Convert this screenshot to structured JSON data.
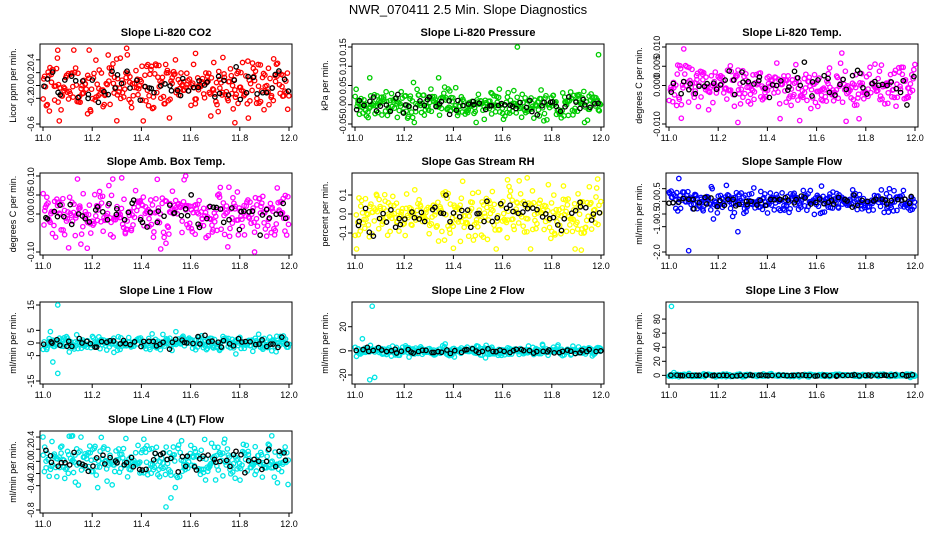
{
  "figure": {
    "title": "NWR_070411  2.5 Min. Slope Diagnostics"
  },
  "chart_data": [
    {
      "type": "scatter",
      "title": "Slope Li-820 CO2",
      "ylabel": "Licor ppm per min.",
      "xlim": [
        11.0,
        12.0
      ],
      "ylim": [
        -0.6,
        0.6
      ],
      "yticks": [
        "-0.6",
        "-0.2",
        "0.0",
        "0.2",
        "0.4"
      ],
      "xticks": [
        "11.0",
        "11.2",
        "11.4",
        "11.6",
        "11.8",
        "12.0"
      ],
      "color": "#ff0000",
      "spread": 0.22,
      "outliers": [
        [
          11.06,
          0.55
        ],
        [
          11.34,
          0.58
        ],
        [
          11.62,
          0.5
        ],
        [
          11.78,
          -0.58
        ],
        [
          11.3,
          -0.55
        ]
      ],
      "seed": 11
    },
    {
      "type": "scatter",
      "title": "Slope Li-820 Pressure",
      "ylabel": "kPa per min.",
      "xlim": [
        11.0,
        12.0
      ],
      "ylim": [
        -0.05,
        0.15
      ],
      "yticks": [
        "-0.05",
        "0.00",
        "0.05",
        "0.10",
        "0.15"
      ],
      "xticks": [
        "11.0",
        "11.2",
        "11.4",
        "11.6",
        "11.8",
        "12.0"
      ],
      "color": "#00cc00",
      "spread": 0.018,
      "outliers": [
        [
          11.66,
          0.15
        ],
        [
          11.99,
          0.13
        ],
        [
          11.34,
          0.07
        ],
        [
          11.06,
          0.07
        ]
      ],
      "seed": 22
    },
    {
      "type": "scatter",
      "title": "Slope Li-820 Temp.",
      "ylabel": "degrees C per min.",
      "xlim": [
        11.0,
        12.0
      ],
      "ylim": [
        -0.01,
        0.01
      ],
      "yticks": [
        "-0.010",
        "0.000",
        "0.005",
        "0.010"
      ],
      "xticks": [
        "11.0",
        "11.2",
        "11.4",
        "11.6",
        "11.8",
        "12.0"
      ],
      "color": "#ff00ff",
      "spread": 0.0028,
      "outliers": [
        [
          11.06,
          0.0095
        ],
        [
          11.28,
          -0.0096
        ],
        [
          11.05,
          -0.0085
        ],
        [
          11.72,
          -0.0093
        ]
      ],
      "seed": 33
    },
    {
      "type": "scatter",
      "title": "Slope Amb. Box Temp.",
      "ylabel": "degrees C per min.",
      "xlim": [
        11.0,
        12.0
      ],
      "ylim": [
        -0.1,
        0.1
      ],
      "yticks": [
        "-0.10",
        "0.00",
        "0.05",
        "0.10"
      ],
      "xticks": [
        "11.0",
        "11.2",
        "11.4",
        "11.6",
        "11.8",
        "12.0"
      ],
      "color": "#ff00ff",
      "spread": 0.035,
      "outliers": [
        [
          11.58,
          0.105
        ],
        [
          11.32,
          0.095
        ],
        [
          11.86,
          -0.1
        ],
        [
          11.18,
          -0.09
        ]
      ],
      "seed": 44
    },
    {
      "type": "scatter",
      "title": "Slope Gas Stream RH",
      "ylabel": "percent per min.",
      "xlim": [
        11.0,
        12.0
      ],
      "ylim": [
        -0.2,
        0.2
      ],
      "yticks": [
        "-0.1",
        "0.0",
        "0.1"
      ],
      "xticks": [
        "11.0",
        "11.2",
        "11.4",
        "11.6",
        "11.8",
        "12.0"
      ],
      "color": "#ffff00",
      "spread": 0.07,
      "outliers": [
        [
          11.62,
          0.18
        ],
        [
          11.7,
          0.19
        ],
        [
          11.92,
          -0.19
        ],
        [
          11.4,
          -0.18
        ]
      ],
      "seed": 55
    },
    {
      "type": "scatter",
      "title": "Slope Sample Flow",
      "ylabel": "ml/min per min.",
      "xlim": [
        11.0,
        12.0
      ],
      "ylim": [
        -2.0,
        1.0
      ],
      "yticks": [
        "-2.0",
        "-1.0",
        "-0.5",
        "0.0",
        "0.5"
      ],
      "xticks": [
        "11.0",
        "11.2",
        "11.4",
        "11.6",
        "11.8",
        "12.0"
      ],
      "color": "#0000ff",
      "spread": 0.22,
      "outliers": [
        [
          11.08,
          -1.95
        ],
        [
          11.04,
          0.9
        ],
        [
          11.28,
          -1.2
        ],
        [
          11.62,
          0.6
        ]
      ],
      "seed": 66
    },
    {
      "type": "scatter",
      "title": "Slope Line 1 Flow",
      "ylabel": "ml/min per min.",
      "xlim": [
        11.0,
        12.0
      ],
      "ylim": [
        -15.0,
        15.0
      ],
      "yticks": [
        "-15",
        "-5",
        "0",
        "5",
        "15"
      ],
      "xticks": [
        "11.0",
        "11.2",
        "11.4",
        "11.6",
        "11.8",
        "12.0"
      ],
      "color": "#00e5e5",
      "spread": 1.6,
      "outliers": [
        [
          11.06,
          15.0
        ],
        [
          11.06,
          -12.0
        ],
        [
          11.04,
          -7.5
        ],
        [
          11.03,
          4.5
        ]
      ],
      "seed": 77
    },
    {
      "type": "scatter",
      "title": "Slope Line 2 Flow",
      "ylabel": "ml/min per min.",
      "xlim": [
        11.0,
        12.0
      ],
      "ylim": [
        -25.0,
        38.0
      ],
      "yticks": [
        "-20",
        "0",
        "20"
      ],
      "xticks": [
        "11.0",
        "11.2",
        "11.4",
        "11.6",
        "11.8",
        "12.0"
      ],
      "color": "#00e5e5",
      "spread": 2.0,
      "outliers": [
        [
          11.07,
          37.0
        ],
        [
          11.06,
          -24.0
        ],
        [
          11.08,
          -22.0
        ],
        [
          11.03,
          10.0
        ]
      ],
      "seed": 88
    },
    {
      "type": "scatter",
      "title": "Slope Line 3 Flow",
      "ylabel": "ml/min per min.",
      "xlim": [
        11.0,
        12.0
      ],
      "ylim": [
        -8.0,
        100.0
      ],
      "yticks": [
        "0",
        "20",
        "40",
        "60",
        "80"
      ],
      "xticks": [
        "11.0",
        "11.2",
        "11.4",
        "11.6",
        "11.8",
        "12.0"
      ],
      "color": "#00e5e5",
      "spread": 0.9,
      "outliers": [
        [
          11.01,
          98.0
        ],
        [
          11.02,
          4.0
        ],
        [
          11.04,
          -2.0
        ]
      ],
      "seed": 99
    },
    {
      "type": "scatter",
      "title": "Slope Line 4 (LT) Flow",
      "ylabel": "ml/min per min.",
      "xlim": [
        11.0,
        12.0
      ],
      "ylim": [
        -0.8,
        0.45
      ],
      "yticks": [
        "-0.8",
        "-0.4",
        "-0.2",
        "0.0",
        "0.2",
        "0.4"
      ],
      "xticks": [
        "11.0",
        "11.2",
        "11.4",
        "11.6",
        "11.8",
        "12.0"
      ],
      "color": "#00e5e5",
      "spread": 0.16,
      "outliers": [
        [
          11.5,
          -0.75
        ],
        [
          11.52,
          -0.6
        ],
        [
          11.0,
          0.4
        ],
        [
          11.12,
          0.42
        ],
        [
          11.93,
          0.42
        ]
      ],
      "seed": 111
    }
  ]
}
